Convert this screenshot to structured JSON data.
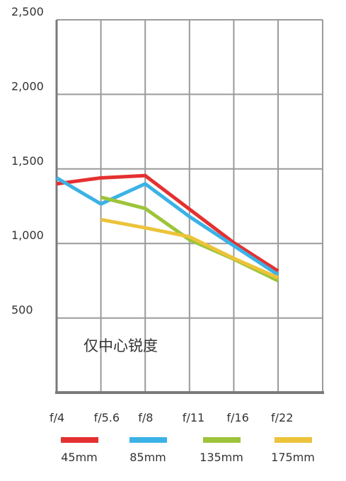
{
  "chart_data": {
    "type": "line",
    "title": "",
    "annotation": "仅中心锐度",
    "xlabel": "",
    "ylabel": "",
    "categories": [
      "f/4",
      "f/5.6",
      "f/8",
      "f/11",
      "f/16",
      "f/22"
    ],
    "y_ticks": [
      "2,500",
      "2,000",
      "1,500",
      "1,000",
      "500"
    ],
    "y_tick_values": [
      2500,
      2000,
      1500,
      1000,
      500
    ],
    "ylim": [
      0,
      2500
    ],
    "grid": true,
    "legend_position": "bottom",
    "series": [
      {
        "name": "45mm",
        "color": "#e53030",
        "values": [
          1400,
          1440,
          1455,
          1230,
          1005,
          815
        ]
      },
      {
        "name": "85mm",
        "color": "#3bb2e6",
        "values": [
          1440,
          1265,
          1400,
          1180,
          985,
          790
        ]
      },
      {
        "name": "135mm",
        "color": "#9dc43a",
        "values": [
          null,
          1310,
          1235,
          1025,
          895,
          750
        ]
      },
      {
        "name": "175mm",
        "color": "#ecc33a",
        "values": [
          null,
          1160,
          1105,
          1045,
          900,
          770
        ]
      }
    ]
  }
}
